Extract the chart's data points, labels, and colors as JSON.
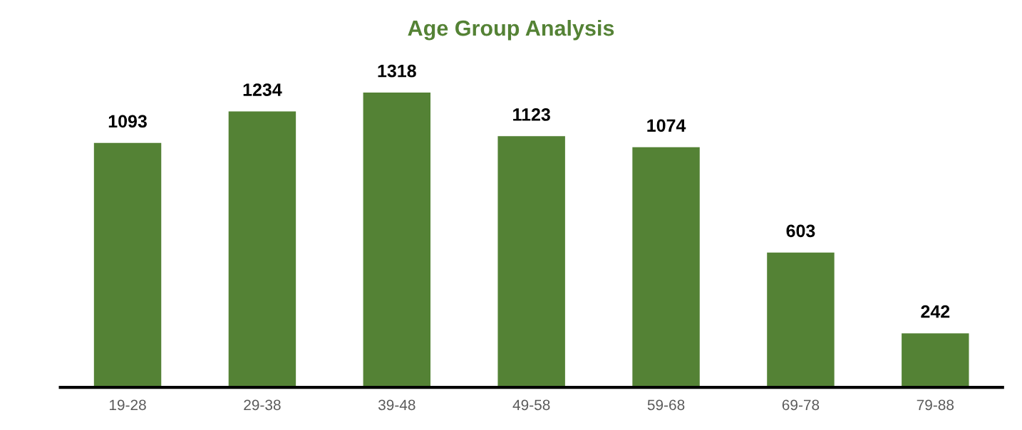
{
  "chart_data": {
    "type": "bar",
    "title": "Age Group Analysis",
    "categories": [
      "19-28",
      "29-38",
      "39-48",
      "49-58",
      "59-68",
      "69-78",
      "79-88"
    ],
    "values": [
      1093,
      1234,
      1318,
      1123,
      1074,
      603,
      242
    ],
    "color": "#548235",
    "data_labels": true
  }
}
